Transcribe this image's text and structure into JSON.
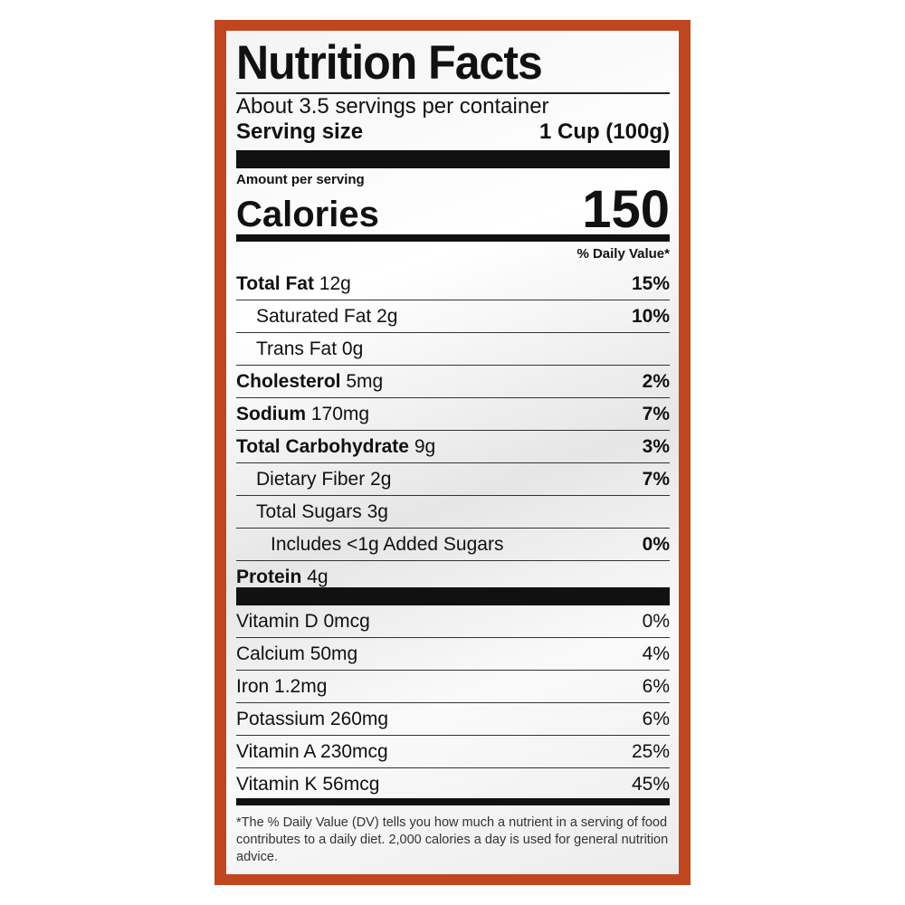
{
  "header": {
    "title": "Nutrition Facts",
    "servings": "About 3.5 servings per container",
    "serving_size_label": "Serving size",
    "serving_size_value": "1 Cup (100g)"
  },
  "calories": {
    "amount_per_serving": "Amount per serving",
    "label": "Calories",
    "value": "150"
  },
  "dv_header": "% Daily Value*",
  "nutrients": [
    {
      "name": "Total Fat",
      "amount": "12g",
      "dv": "15%"
    },
    {
      "name": "Saturated Fat",
      "amount": "2g",
      "dv": "10%"
    },
    {
      "name": "Trans Fat",
      "amount": "0g"
    },
    {
      "name": "Cholesterol",
      "amount": "5mg",
      "dv": "2%"
    },
    {
      "name": "Sodium",
      "amount": "170mg",
      "dv": "7%"
    },
    {
      "name": "Total Carbohydrate",
      "amount": "9g",
      "dv": "3%"
    },
    {
      "name": "Dietary Fiber",
      "amount": "2g",
      "dv": "7%"
    },
    {
      "name": "Total Sugars",
      "amount": "3g"
    },
    {
      "name": "Includes <1g Added Sugars",
      "dv": "0%"
    },
    {
      "name": "Protein",
      "amount": "4g"
    }
  ],
  "vitamins": [
    {
      "name": "Vitamin D",
      "amount": "0mcg",
      "dv": "0%"
    },
    {
      "name": "Calcium",
      "amount": "50mg",
      "dv": "4%"
    },
    {
      "name": "Iron",
      "amount": "1.2mg",
      "dv": "6%"
    },
    {
      "name": "Potassium",
      "amount": "260mg",
      "dv": "6%"
    },
    {
      "name": "Vitamin A",
      "amount": "230mcg",
      "dv": "25%"
    },
    {
      "name": "Vitamin K",
      "amount": "56mcg",
      "dv": "45%"
    }
  ],
  "footnote": "*The % Daily Value (DV) tells you how much a nutrient in a serving of food contributes to a daily diet. 2,000 calories a day is used for general nutrition advice."
}
